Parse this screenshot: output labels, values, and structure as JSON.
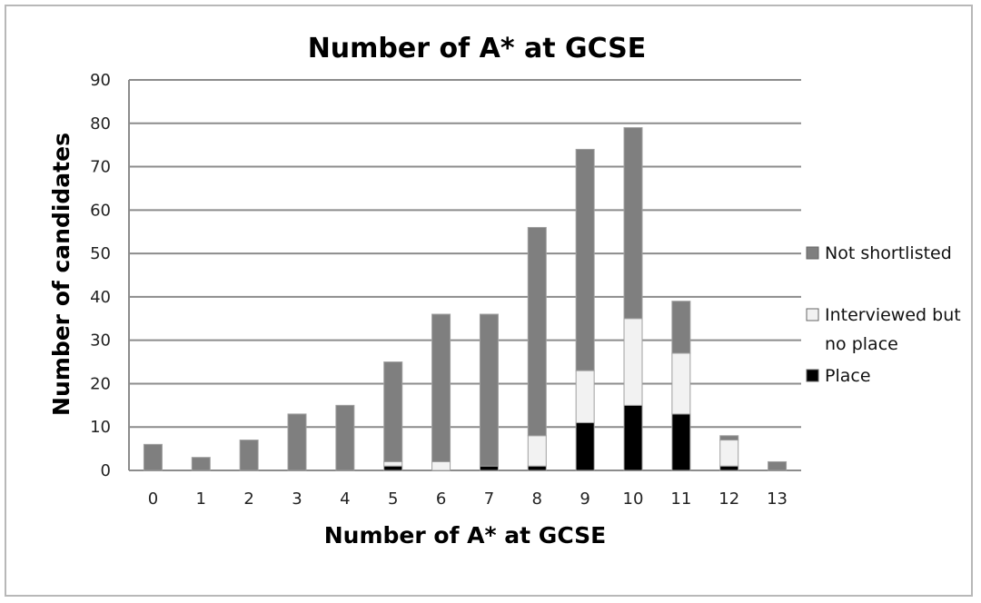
{
  "chart_data": {
    "type": "bar",
    "stacked": true,
    "title": "Number of A* at GCSE",
    "xlabel": "Number of A* at GCSE",
    "ylabel": "Number of candidates",
    "categories": [
      "0",
      "1",
      "2",
      "3",
      "4",
      "5",
      "6",
      "7",
      "8",
      "9",
      "10",
      "11",
      "12",
      "13"
    ],
    "ylim": [
      0,
      90
    ],
    "yticks": [
      0,
      10,
      20,
      30,
      40,
      50,
      60,
      70,
      80,
      90
    ],
    "grid": "horizontal",
    "legend_position": "right",
    "series": [
      {
        "name": "Place",
        "color": "#000000",
        "values": [
          0,
          0,
          0,
          0,
          0,
          1,
          0,
          1,
          1,
          11,
          15,
          13,
          1,
          0
        ]
      },
      {
        "name": "Interviewed but no place",
        "color": "#f2f2f2",
        "values": [
          0,
          0,
          0,
          0,
          0,
          1,
          2,
          0,
          7,
          12,
          20,
          14,
          6,
          0
        ]
      },
      {
        "name": "Not shortlisted",
        "color": "#7f7f7f",
        "values": [
          6,
          3,
          7,
          13,
          15,
          23,
          34,
          35,
          48,
          51,
          44,
          12,
          1,
          2
        ]
      }
    ],
    "legend": {
      "order": [
        "Not shortlisted",
        "Interviewed but no place",
        "Place"
      ],
      "lines": [
        [
          "Not shortlisted"
        ],
        [
          "Interviewed but",
          "no place"
        ],
        [
          "Place"
        ]
      ]
    }
  }
}
